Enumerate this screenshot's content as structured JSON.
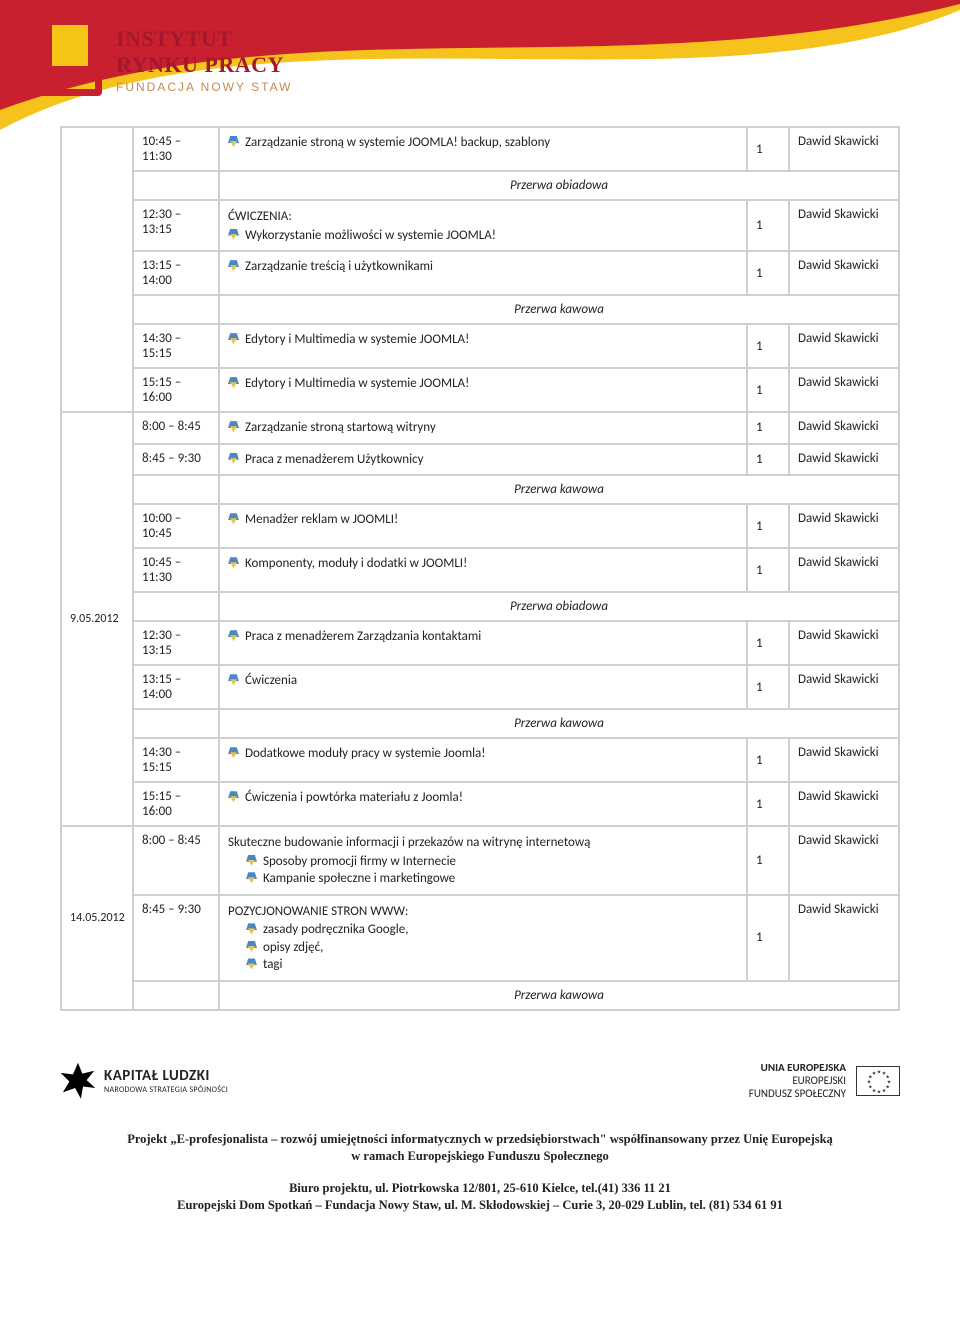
{
  "header": {
    "logo_line1": "INSTYTUT",
    "logo_line1b": "RYNKU PRACY",
    "logo_line2": "FUNDACJA NOWY STAW"
  },
  "swoosh_colors": {
    "back": "#f6c21c",
    "front": "#c8202f"
  },
  "table": {
    "col_widths": {
      "date": 72,
      "time": 86,
      "hours": 42,
      "trainer": 110
    },
    "border_color": "#d0d0d0"
  },
  "breaks": {
    "lunch": "Przerwa obiadowa",
    "coffee": "Przerwa kawowa"
  },
  "trainer_default": "Dawid Skawicki",
  "block1": {
    "rows": [
      {
        "time": "10:45 – 11:30",
        "bullets": [
          "Zarządzanie stroną  w systemie JOOMLA! backup, szablony"
        ],
        "hours": "1"
      },
      {
        "break": "lunch"
      },
      {
        "time": "12:30 – 13:15",
        "pre": "ĆWICZENIA:",
        "bullets": [
          "Wykorzystanie możliwości w systemie JOOMLA!"
        ],
        "hours": "1"
      },
      {
        "time": "13:15 – 14:00",
        "bullets": [
          "Zarządzanie treścią i użytkownikami"
        ],
        "hours": "1"
      },
      {
        "break": "coffee"
      },
      {
        "time": "14:30 – 15:15",
        "bullets": [
          "Edytory i Multimedia w systemie JOOMLA!"
        ],
        "hours": "1"
      },
      {
        "time": "15:15 – 16:00",
        "bullets": [
          "Edytory i Multimedia w systemie JOOMLA!"
        ],
        "hours": "1"
      }
    ]
  },
  "block2": {
    "date": "9.05.2012",
    "rows": [
      {
        "time": "8:00 – 8:45",
        "bullets": [
          "Zarządzanie stroną startową witryny"
        ],
        "hours": "1"
      },
      {
        "time": "8:45 – 9:30",
        "bullets": [
          "Praca z menadżerem Użytkownicy"
        ],
        "hours": "1"
      },
      {
        "break": "coffee"
      },
      {
        "time": "10:00 – 10:45",
        "bullets": [
          "Menadżer reklam w JOOMLI!"
        ],
        "hours": "1"
      },
      {
        "time": "10:45 – 11:30",
        "bullets": [
          "Komponenty, moduły i dodatki w JOOMLI!"
        ],
        "hours": "1"
      },
      {
        "break": "lunch"
      },
      {
        "time": "12:30 – 13:15",
        "bullets": [
          "Praca z menadżerem Zarządzania kontaktami"
        ],
        "hours": "1"
      },
      {
        "time": "13:15 – 14:00",
        "bullets": [
          "Ćwiczenia"
        ],
        "hours": "1"
      },
      {
        "break": "coffee"
      },
      {
        "time": "14:30 – 15:15",
        "bullets": [
          "Dodatkowe moduły pracy w systemie Joomla!"
        ],
        "hours": "1"
      },
      {
        "time": "15:15 – 16:00",
        "bullets": [
          "Ćwiczenia i powtórka materiału z Joomla!"
        ],
        "hours": "1"
      }
    ]
  },
  "block3": {
    "date": "14.05.2012",
    "rows": [
      {
        "time": "8:00 – 8:45",
        "pre": "Skuteczne budowanie informacji i przekazów na witrynę internetową",
        "bullets_indent": [
          "Sposoby promocji firmy w Internecie",
          "Kampanie społeczne i marketingowe"
        ],
        "hours": "1"
      },
      {
        "time": "8:45 – 9:30",
        "pre": "POZYCJONOWANIE STRON WWW:",
        "bullets_indent": [
          "zasady podręcznika Google,",
          "opisy zdjęć,",
          "tagi"
        ],
        "hours": "1"
      },
      {
        "break": "coffee"
      }
    ]
  },
  "footer": {
    "kl_title": "KAPITAŁ LUDZKI",
    "kl_sub": "NARODOWA STRATEGIA SPÓJNOŚCI",
    "eu_line1": "UNIA EUROPEJSKA",
    "eu_line2": "EUROPEJSKI",
    "eu_line3": "FUNDUSZ SPOŁECZNY",
    "proj1": "Projekt „E-profesjonalista – rozwój umiejętności informatycznych w przedsiębiorstwach\" współfinansowany przez Unię Europejską",
    "proj2": "w ramach Europejskiego Funduszu Społecznego",
    "biuro": "Biuro projektu,  ul. Piotrkowska 12/801, 25-610  Kielce, tel.(41) 336 11 21",
    "org": "Europejski Dom Spotkań – Fundacja Nowy Staw, ul. M. Skłodowskiej – Curie 3, 20-029 Lublin, tel. (81) 534 61 91"
  }
}
